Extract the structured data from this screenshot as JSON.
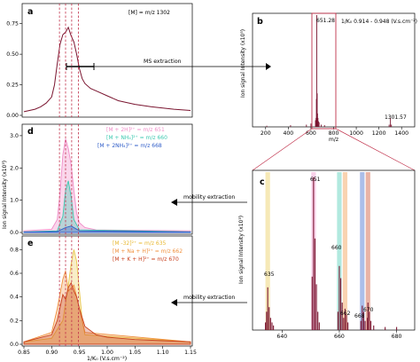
{
  "panels": {
    "a": {
      "label": "a",
      "annotation": "[M] = m/z 1302",
      "yticks": [
        "0.00",
        "0.25",
        "0.50",
        "0.75"
      ],
      "extraction_label": "MS extraction"
    },
    "b": {
      "label": "b",
      "annotation": "1/K₀ 0.914 - 0.948 (V.s.cm⁻²)",
      "ylabel": "Ion signal Intensity (x10⁵)",
      "xlabel": "m/z",
      "xticks": [
        "200",
        "400",
        "600",
        "800",
        "1000",
        "1200",
        "1400"
      ],
      "peak_labels": [
        "651.28",
        "1301.57"
      ]
    },
    "c": {
      "label": "c",
      "ylabel": "Ion signal Intensity (x10³)",
      "xticks": [
        "640",
        "660",
        "680"
      ],
      "peak_labels": [
        "651",
        "660",
        "635",
        "662",
        "668",
        "670"
      ]
    },
    "d": {
      "label": "d",
      "legend": [
        "[M + 2H]²⁺ = m/z 651",
        "[M + NH₄]²⁺ = m/z 660",
        "[M + 2NH₄]²⁺ = m/z 668"
      ],
      "yticks": [
        "0.0",
        "1.0",
        "2.0",
        "3.0"
      ],
      "ylabel": "Ion signal Intensity (x10³)",
      "extraction_label": "mobility extraction"
    },
    "e": {
      "label": "e",
      "legend": [
        "[M -32]²⁺ = m/z 635",
        "[M + Na + H]²⁺ = m/z 662",
        "[M + K + H]²⁺ = m/z 670"
      ],
      "yticks": [
        "0.0",
        "0.2",
        "0.4",
        "0.6",
        "0.8"
      ],
      "xticks": [
        "0.85",
        "0.90",
        "0.95",
        "1.00",
        "1.05",
        "1.10",
        "1.15"
      ],
      "xlabel": "1/K₀ (V.s.cm⁻²)",
      "extraction_label": "mobility extraction"
    }
  },
  "colors": {
    "dark": "#7a1530",
    "dash": "#c0304a",
    "pink": "#f08cc8",
    "teal": "#3cc9b0",
    "blue": "#2e5cc8",
    "yellow": "#e8c84a",
    "orange": "#f0903c",
    "red": "#c8401e"
  },
  "chart_data": [
    {
      "id": "a",
      "type": "line",
      "xlabel": "",
      "ylabel": "",
      "ylim": [
        0,
        0.9
      ],
      "series": [
        {
          "x": [
            0.85,
            0.87,
            0.88,
            0.89,
            0.9,
            0.905,
            0.91,
            0.915,
            0.92,
            0.925,
            0.93,
            0.935,
            0.94,
            0.945,
            0.95,
            0.955,
            0.96,
            0.97,
            0.98,
            1.0,
            1.02,
            1.05,
            1.08,
            1.1,
            1.12,
            1.15
          ],
          "y": [
            0.03,
            0.05,
            0.07,
            0.1,
            0.15,
            0.25,
            0.42,
            0.58,
            0.66,
            0.68,
            0.72,
            0.65,
            0.6,
            0.5,
            0.38,
            0.3,
            0.26,
            0.22,
            0.2,
            0.16,
            0.12,
            0.09,
            0.07,
            0.06,
            0.05,
            0.04
          ]
        }
      ],
      "extraction_range": [
        0.914,
        0.948
      ]
    },
    {
      "id": "b",
      "type": "line",
      "xlabel": "m/z",
      "ylabel": "Ion signal Intensity (x10⁵)",
      "xlim": [
        100,
        1500
      ],
      "peaks": [
        {
          "x": 651.28,
          "y": 1.0,
          "label": "651.28"
        },
        {
          "x": 1301.57,
          "y": 0.08,
          "label": "1301.57"
        }
      ]
    },
    {
      "id": "c",
      "type": "bar",
      "xlabel": "",
      "ylabel": "Ion signal Intensity (x10³)",
      "xlim": [
        630,
        686
      ],
      "peaks": [
        {
          "x": 635,
          "y": 0.28
        },
        {
          "x": 651,
          "y": 1.0
        },
        {
          "x": 660,
          "y": 0.42
        },
        {
          "x": 662,
          "y": 0.14
        },
        {
          "x": 668,
          "y": 0.16
        },
        {
          "x": 670,
          "y": 0.18
        }
      ],
      "highlight_bands": [
        {
          "x": 635,
          "color": "yellow"
        },
        {
          "x": 651,
          "color": "pink"
        },
        {
          "x": 660,
          "color": "teal"
        },
        {
          "x": 662,
          "color": "orange"
        },
        {
          "x": 668,
          "color": "blue"
        },
        {
          "x": 670,
          "color": "red"
        }
      ]
    },
    {
      "id": "d",
      "type": "area",
      "ylim": [
        0,
        3.3
      ],
      "ylabel": "Ion signal Intensity (x10³)",
      "series": [
        {
          "name": "[M + 2H]²⁺ = m/z 651",
          "color": "pink",
          "x": [
            0.85,
            0.9,
            0.91,
            0.915,
            0.92,
            0.925,
            0.93,
            0.935,
            0.94,
            0.945,
            0.95,
            0.96,
            0.98,
            1.15
          ],
          "y": [
            0.05,
            0.1,
            0.4,
            1.2,
            2.4,
            2.9,
            2.6,
            2.1,
            1.3,
            0.6,
            0.3,
            0.15,
            0.08,
            0.05
          ]
        },
        {
          "name": "[M + NH₄]²⁺ = m/z 660",
          "color": "teal",
          "x": [
            0.85,
            0.91,
            0.92,
            0.925,
            0.93,
            0.935,
            0.94,
            0.95,
            1.15
          ],
          "y": [
            0.02,
            0.05,
            0.5,
            1.3,
            1.6,
            1.1,
            0.4,
            0.08,
            0.02
          ]
        },
        {
          "name": "[M + 2NH₄]²⁺ = m/z 668",
          "color": "blue",
          "x": [
            0.85,
            0.91,
            0.925,
            0.935,
            0.95,
            1.15
          ],
          "y": [
            0.01,
            0.03,
            0.15,
            0.2,
            0.05,
            0.01
          ]
        }
      ]
    },
    {
      "id": "e",
      "type": "area",
      "ylim": [
        0,
        0.9
      ],
      "xlabel": "1/K₀ (V.s.cm⁻²)",
      "series": [
        {
          "name": "[M -32]²⁺ = m/z 635",
          "color": "yellow",
          "x": [
            0.85,
            0.9,
            0.92,
            0.93,
            0.935,
            0.94,
            0.945,
            0.95,
            0.955,
            0.96,
            1.15
          ],
          "y": [
            0.02,
            0.05,
            0.2,
            0.5,
            0.68,
            0.8,
            0.7,
            0.45,
            0.2,
            0.08,
            0.02
          ]
        },
        {
          "name": "[M + Na + H]²⁺ = m/z 662",
          "color": "orange",
          "x": [
            0.85,
            0.9,
            0.91,
            0.92,
            0.925,
            0.93,
            0.94,
            0.95,
            0.96,
            1.15
          ],
          "y": [
            0.02,
            0.1,
            0.3,
            0.55,
            0.62,
            0.45,
            0.5,
            0.3,
            0.1,
            0.02
          ]
        },
        {
          "name": "[M + K + H]²⁺ = m/z 670",
          "color": "red",
          "x": [
            0.85,
            0.9,
            0.91,
            0.92,
            0.925,
            0.93,
            0.935,
            0.94,
            0.945,
            0.95,
            0.96,
            0.98,
            1.0,
            1.05,
            1.1,
            1.15
          ],
          "y": [
            0.02,
            0.08,
            0.2,
            0.42,
            0.38,
            0.48,
            0.52,
            0.45,
            0.4,
            0.3,
            0.15,
            0.08,
            0.06,
            0.04,
            0.03,
            0.02
          ]
        }
      ]
    }
  ]
}
